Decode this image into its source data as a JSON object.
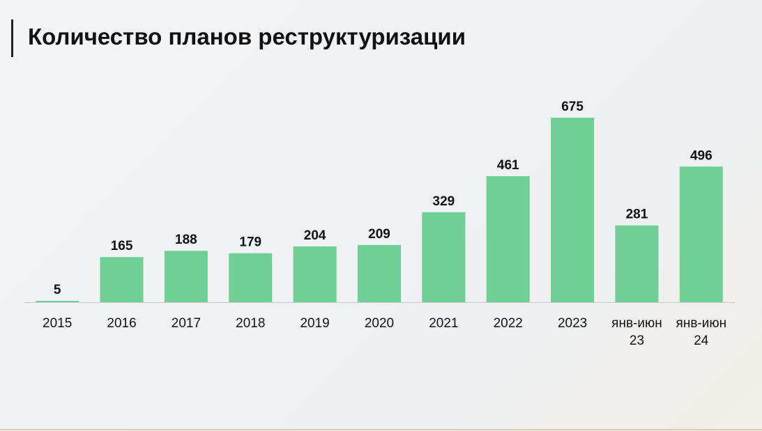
{
  "chart_data": {
    "type": "bar",
    "title": "Количество планов реструктуризации",
    "categories": [
      "2015",
      "2016",
      "2017",
      "2018",
      "2019",
      "2020",
      "2021",
      "2022",
      "2023",
      "янв-июн 23",
      "янв-июн 24"
    ],
    "values": [
      5,
      165,
      188,
      179,
      204,
      209,
      329,
      461,
      675,
      281,
      496
    ],
    "color": "#70cf95"
  }
}
